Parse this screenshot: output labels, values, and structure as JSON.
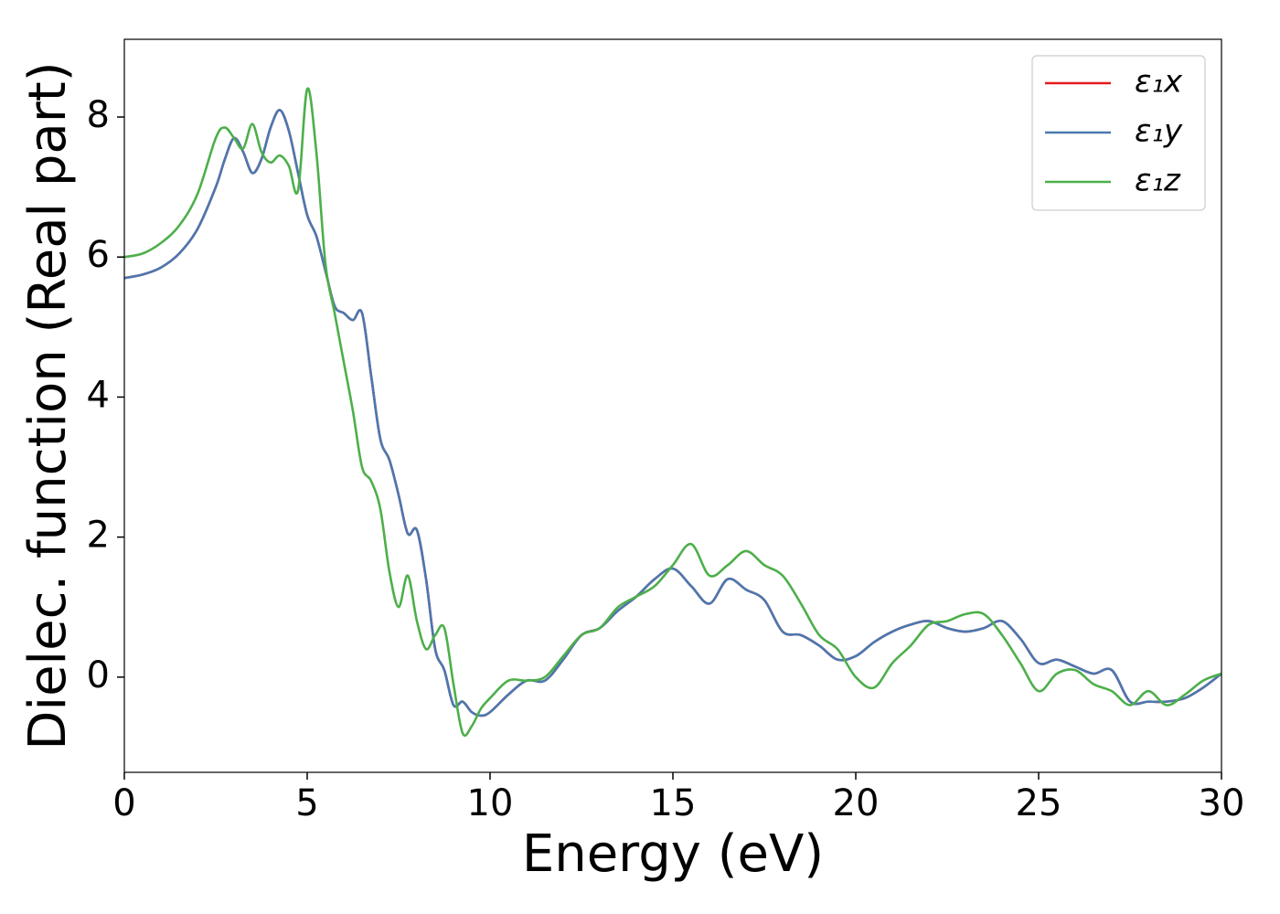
{
  "chart_data": {
    "type": "line",
    "xlabel": "Energy (eV)",
    "ylabel": "Dielec. function (Real part)",
    "x": [
      0,
      0.5,
      1,
      1.5,
      2,
      2.5,
      2.75,
      3,
      3.25,
      3.5,
      3.75,
      4,
      4.25,
      4.5,
      4.75,
      5,
      5.25,
      5.5,
      5.75,
      6,
      6.25,
      6.5,
      6.75,
      7,
      7.25,
      7.5,
      7.75,
      8,
      8.25,
      8.5,
      8.75,
      9,
      9.25,
      9.5,
      9.75,
      10,
      10.5,
      11,
      11.5,
      12,
      12.5,
      13,
      13.5,
      14,
      14.5,
      15,
      15.5,
      16,
      16.5,
      17,
      17.5,
      18,
      18.5,
      19,
      19.5,
      20,
      20.5,
      21,
      21.5,
      22,
      22.5,
      23,
      23.5,
      24,
      24.5,
      25,
      25.5,
      26,
      26.5,
      27,
      27.5,
      28,
      28.5,
      29,
      29.5,
      30
    ],
    "series": [
      {
        "name": "ε₁x",
        "color": "#e41a1c",
        "values": [
          5.7,
          5.75,
          5.85,
          6.05,
          6.4,
          7.0,
          7.4,
          7.7,
          7.5,
          7.2,
          7.4,
          7.85,
          8.1,
          7.8,
          7.2,
          6.6,
          6.3,
          5.8,
          5.3,
          5.2,
          5.1,
          5.2,
          4.3,
          3.4,
          3.1,
          2.6,
          2.05,
          2.1,
          1.4,
          0.4,
          0.1,
          -0.4,
          -0.35,
          -0.5,
          -0.55,
          -0.5,
          -0.25,
          -0.05,
          -0.05,
          0.25,
          0.6,
          0.7,
          0.95,
          1.15,
          1.4,
          1.55,
          1.3,
          1.05,
          1.4,
          1.25,
          1.1,
          0.65,
          0.6,
          0.45,
          0.25,
          0.3,
          0.5,
          0.65,
          0.75,
          0.8,
          0.7,
          0.65,
          0.7,
          0.8,
          0.55,
          0.2,
          0.25,
          0.15,
          0.05,
          0.1,
          -0.35,
          -0.35,
          -0.35,
          -0.3,
          -0.15,
          0.05
        ]
      },
      {
        "name": "ε₁y",
        "color": "#4a78b0",
        "values": [
          5.7,
          5.75,
          5.85,
          6.05,
          6.4,
          7.0,
          7.4,
          7.7,
          7.5,
          7.2,
          7.4,
          7.85,
          8.1,
          7.8,
          7.2,
          6.6,
          6.3,
          5.8,
          5.3,
          5.2,
          5.1,
          5.2,
          4.3,
          3.4,
          3.1,
          2.6,
          2.05,
          2.1,
          1.4,
          0.4,
          0.1,
          -0.4,
          -0.35,
          -0.5,
          -0.55,
          -0.5,
          -0.25,
          -0.05,
          -0.05,
          0.25,
          0.6,
          0.7,
          0.95,
          1.15,
          1.4,
          1.55,
          1.3,
          1.05,
          1.4,
          1.25,
          1.1,
          0.65,
          0.6,
          0.45,
          0.25,
          0.3,
          0.5,
          0.65,
          0.75,
          0.8,
          0.7,
          0.65,
          0.7,
          0.8,
          0.55,
          0.2,
          0.25,
          0.15,
          0.05,
          0.1,
          -0.35,
          -0.35,
          -0.35,
          -0.3,
          -0.15,
          0.05
        ]
      },
      {
        "name": "ε₁z",
        "color": "#4daf4a",
        "values": [
          6.0,
          6.05,
          6.2,
          6.45,
          6.9,
          7.7,
          7.85,
          7.7,
          7.55,
          7.9,
          7.5,
          7.35,
          7.45,
          7.3,
          6.95,
          8.4,
          7.5,
          5.9,
          5.2,
          4.5,
          3.8,
          3.0,
          2.8,
          2.4,
          1.5,
          1.0,
          1.45,
          0.8,
          0.4,
          0.6,
          0.7,
          -0.1,
          -0.8,
          -0.7,
          -0.45,
          -0.3,
          -0.05,
          -0.05,
          0.0,
          0.3,
          0.6,
          0.7,
          1.0,
          1.15,
          1.3,
          1.6,
          1.9,
          1.45,
          1.6,
          1.8,
          1.6,
          1.45,
          1.05,
          0.6,
          0.4,
          0.0,
          -0.15,
          0.2,
          0.45,
          0.75,
          0.8,
          0.9,
          0.9,
          0.6,
          0.2,
          -0.2,
          0.05,
          0.1,
          -0.1,
          -0.2,
          -0.4,
          -0.2,
          -0.4,
          -0.25,
          -0.05,
          0.05
        ]
      }
    ],
    "xlim": [
      0,
      30
    ],
    "xticks": [
      0,
      5,
      10,
      15,
      20,
      25,
      30
    ],
    "ylim": [
      -1.36,
      9.11
    ],
    "yticks": [
      0,
      2,
      4,
      6,
      8
    ],
    "legend": "upper right"
  }
}
